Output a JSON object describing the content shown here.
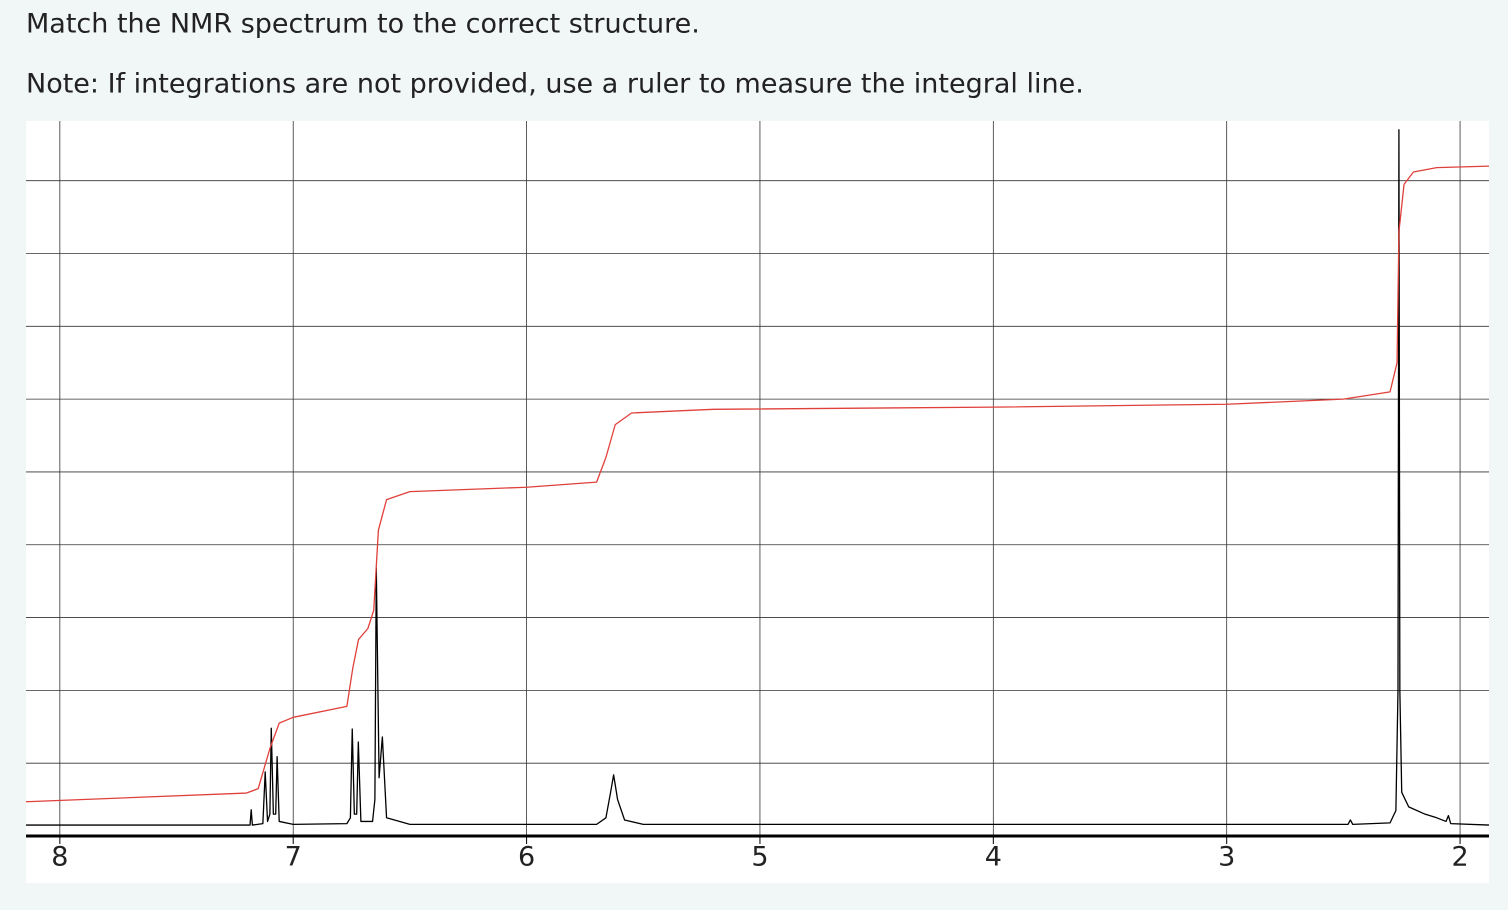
{
  "question": "Match the NMR spectrum to the correct structure.",
  "note": "Note: If integrations are not provided, use a ruler to measure the integral line.",
  "chart_data": {
    "type": "line",
    "xlim": [
      8.145,
      1.876
    ],
    "xticks": [
      8,
      7,
      6,
      5,
      4,
      3,
      2
    ],
    "ylim": [
      0,
      9.82
    ],
    "ygrid": [
      1,
      2,
      3,
      4,
      5,
      6,
      7,
      8,
      9
    ],
    "grid": true,
    "series": [
      {
        "color": "#000000",
        "x": [
          8.145,
          7.2,
          7.185,
          7.18,
          7.175,
          7.13,
          7.12,
          7.11,
          7.1,
          7.094,
          7.085,
          7.075,
          7.069,
          7.06,
          7.0,
          6.77,
          6.755,
          6.747,
          6.738,
          6.728,
          6.721,
          6.71,
          6.66,
          6.65,
          6.644,
          6.632,
          6.618,
          6.6,
          6.5,
          5.7,
          5.66,
          5.64,
          5.627,
          5.61,
          5.58,
          5.5,
          2.48,
          2.47,
          2.46,
          2.3,
          2.275,
          2.266,
          2.262,
          2.258,
          2.25,
          2.22,
          2.15,
          2.1,
          2.06,
          2.05,
          2.04,
          1.876
        ],
        "values": [
          0.15,
          0.15,
          0.15,
          0.36,
          0.15,
          0.17,
          0.88,
          0.2,
          0.3,
          1.48,
          0.3,
          0.3,
          1.09,
          0.2,
          0.16,
          0.17,
          0.25,
          1.47,
          0.3,
          0.3,
          1.29,
          0.2,
          0.2,
          0.5,
          3.68,
          0.8,
          1.36,
          0.25,
          0.16,
          0.16,
          0.25,
          0.6,
          0.84,
          0.5,
          0.22,
          0.16,
          0.16,
          0.22,
          0.16,
          0.18,
          0.35,
          2,
          9.7,
          2,
          0.6,
          0.4,
          0.3,
          0.25,
          0.2,
          0.28,
          0.17,
          0.15
        ]
      },
      {
        "color": "#e0403a",
        "x": [
          8.145,
          7.2,
          7.15,
          7.1,
          7.06,
          7.0,
          6.77,
          6.745,
          6.72,
          6.68,
          6.655,
          6.635,
          6.6,
          6.5,
          6.0,
          5.7,
          5.66,
          5.62,
          5.55,
          5.2,
          4.0,
          3.0,
          2.5,
          2.3,
          2.27,
          2.262,
          2.24,
          2.2,
          2.1,
          1.876
        ],
        "values": [
          0.47,
          0.59,
          0.65,
          1.2,
          1.55,
          1.63,
          1.78,
          2.3,
          2.7,
          2.85,
          3.1,
          4.2,
          4.62,
          4.73,
          4.79,
          4.86,
          5.2,
          5.65,
          5.81,
          5.86,
          5.89,
          5.93,
          6.0,
          6.1,
          6.5,
          8.3,
          8.95,
          9.12,
          9.18,
          9.2
        ]
      }
    ]
  }
}
